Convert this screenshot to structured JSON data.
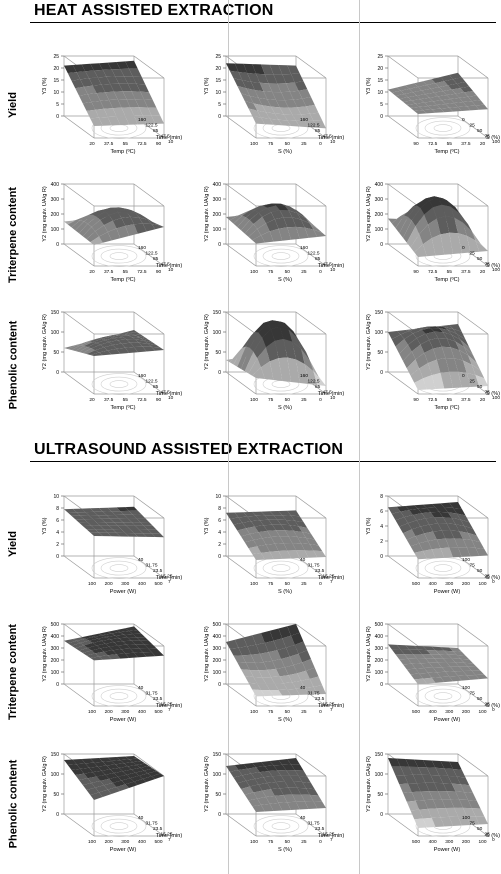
{
  "sections": [
    {
      "title": "HEAT ASSISTED EXTRACTION",
      "rows": [
        {
          "label": "Yield"
        },
        {
          "label": "Triterpene content"
        },
        {
          "label": "Phenolic content"
        }
      ]
    },
    {
      "title": "ULTRASOUND ASSISTED EXTRACTION",
      "rows": [
        {
          "label": "Yield"
        },
        {
          "label": "Triterpene content"
        },
        {
          "label": "Phenolic content"
        }
      ]
    }
  ],
  "colors": {
    "surface_dark": "#111111",
    "surface_light": "#d0d0d0",
    "box_line": "#9a9a9a",
    "text": "#000000"
  },
  "chart_data": [
    {
      "type": "surface",
      "section": 0,
      "row": 0,
      "col": 0,
      "zlabel": "Y3 (%)",
      "zticks": [
        "0",
        "5",
        "10",
        "15",
        "20",
        "25"
      ],
      "xlabel": "Temp (ºC)",
      "xticks": [
        "20",
        "37.5",
        "55",
        "72.5",
        "90"
      ],
      "ylabel": "Time (min)",
      "yticks": [
        "10",
        "47.5",
        "85",
        "122.5",
        "160"
      ],
      "corners": [
        21,
        23,
        6,
        5
      ],
      "bulge": 1
    },
    {
      "type": "surface",
      "section": 0,
      "row": 0,
      "col": 1,
      "zlabel": "Y3 (%)",
      "zticks": [
        "0",
        "5",
        "10",
        "15",
        "20",
        "25"
      ],
      "xlabel": "S (%)",
      "xticks": [
        "100",
        "75",
        "50",
        "25",
        "0"
      ],
      "ylabel": "Time (min)",
      "yticks": [
        "10",
        "47.5",
        "85",
        "122.5",
        "160"
      ],
      "corners": [
        22,
        21,
        4,
        6
      ],
      "bulge": -2
    },
    {
      "type": "surface",
      "section": 0,
      "row": 0,
      "col": 2,
      "zlabel": "Y3 (%)",
      "zticks": [
        "0",
        "5",
        "10",
        "15",
        "20",
        "25"
      ],
      "xlabel": "Temp (ºC)",
      "xticks": [
        "90",
        "72.5",
        "55",
        "37.5",
        "20"
      ],
      "ylabel": "S (%)",
      "yticks": [
        "100",
        "75",
        "50",
        "25",
        "0"
      ],
      "corners": [
        11,
        18,
        12,
        10
      ],
      "bulge": 0
    },
    {
      "type": "surface",
      "section": 0,
      "row": 1,
      "col": 0,
      "zlabel": "Y2 (mg equiv. UA/g R)",
      "zticks": [
        "0",
        "100",
        "200",
        "300",
        "400"
      ],
      "xlabel": "Temp (ºC)",
      "xticks": [
        "20",
        "37.5",
        "55",
        "72.5",
        "90"
      ],
      "ylabel": "Time (min)",
      "yticks": [
        "10",
        "47.5",
        "85",
        "122.5",
        "160"
      ],
      "corners": [
        150,
        200,
        260,
        140
      ],
      "bulge": 120
    },
    {
      "type": "surface",
      "section": 0,
      "row": 1,
      "col": 1,
      "zlabel": "Y2 (mg equiv. UA/g R)",
      "zticks": [
        "0",
        "100",
        "200",
        "300",
        "400"
      ],
      "xlabel": "S (%)",
      "xticks": [
        "100",
        "75",
        "50",
        "25",
        "0"
      ],
      "ylabel": "Time (min)",
      "yticks": [
        "10",
        "47.5",
        "85",
        "122.5",
        "160"
      ],
      "corners": [
        180,
        230,
        200,
        150
      ],
      "bulge": 140
    },
    {
      "type": "surface",
      "section": 0,
      "row": 1,
      "col": 2,
      "zlabel": "Y2 (mg equiv. UA/g R)",
      "zticks": [
        "0",
        "100",
        "200",
        "300",
        "400"
      ],
      "xlabel": "Temp (ºC)",
      "xticks": [
        "90",
        "72.5",
        "55",
        "37.5",
        "20"
      ],
      "ylabel": "S (%)",
      "yticks": [
        "100",
        "75",
        "50",
        "25",
        "0"
      ],
      "corners": [
        170,
        150,
        100,
        60
      ],
      "bulge": 260
    },
    {
      "type": "surface",
      "section": 0,
      "row": 2,
      "col": 0,
      "zlabel": "Y2 (mg equiv. GA/g R)",
      "zticks": [
        "0",
        "50",
        "100",
        "150"
      ],
      "xlabel": "Temp (ºC)",
      "xticks": [
        "20",
        "37.5",
        "55",
        "72.5",
        "90"
      ],
      "ylabel": "Time (min)",
      "yticks": [
        "10",
        "47.5",
        "85",
        "122.5",
        "160"
      ],
      "corners": [
        60,
        105,
        110,
        95
      ],
      "bulge": 20
    },
    {
      "type": "surface",
      "section": 0,
      "row": 2,
      "col": 1,
      "zlabel": "Y2 (mg equiv. GA/g R)",
      "zticks": [
        "0",
        "50",
        "100",
        "150"
      ],
      "xlabel": "S (%)",
      "xticks": [
        "100",
        "75",
        "50",
        "25",
        "0"
      ],
      "ylabel": "Time (min)",
      "yticks": [
        "10",
        "47.5",
        "85",
        "122.5",
        "160"
      ],
      "corners": [
        30,
        60,
        20,
        40
      ],
      "bulge": 120
    },
    {
      "type": "surface",
      "section": 0,
      "row": 2,
      "col": 2,
      "zlabel": "Y2 (mg equiv. GA/g R)",
      "zticks": [
        "0",
        "50",
        "100",
        "150"
      ],
      "xlabel": "Temp (ºC)",
      "xticks": [
        "90",
        "72.5",
        "55",
        "37.5",
        "20"
      ],
      "ylabel": "S (%)",
      "yticks": [
        "100",
        "75",
        "50",
        "25",
        "0"
      ],
      "corners": [
        100,
        120,
        20,
        10
      ],
      "bulge": 50
    },
    {
      "type": "surface",
      "section": 1,
      "row": 0,
      "col": 0,
      "zlabel": "Y3 (%)",
      "zticks": [
        "0",
        "2",
        "4",
        "6",
        "8",
        "10"
      ],
      "xlabel": "Power (W)",
      "xticks": [
        "100",
        "200",
        "300",
        "400",
        "500"
      ],
      "ylabel": "Time (min)",
      "yticks": [
        "7",
        "15.25",
        "23.5",
        "31.75",
        "40"
      ],
      "corners": [
        7.8,
        8.2,
        6.8,
        7.0
      ],
      "bulge": 0
    },
    {
      "type": "surface",
      "section": 1,
      "row": 0,
      "col": 1,
      "zlabel": "Y3 (%)",
      "zticks": [
        "0",
        "2",
        "4",
        "6",
        "8",
        "10"
      ],
      "xlabel": "S (%)",
      "xticks": [
        "100",
        "75",
        "50",
        "25",
        "0"
      ],
      "ylabel": "Time (min)",
      "yticks": [
        "7",
        "15.25",
        "23.5",
        "31.75",
        "40"
      ],
      "corners": [
        7.2,
        7.6,
        3.5,
        3.0
      ],
      "bulge": 0.8
    },
    {
      "type": "surface",
      "section": 1,
      "row": 0,
      "col": 2,
      "zlabel": "Y3 (%)",
      "zticks": [
        "0",
        "2",
        "4",
        "6",
        "8"
      ],
      "xlabel": "Power (W)",
      "xticks": [
        "500",
        "400",
        "300",
        "200",
        "100"
      ],
      "ylabel": "S (%)",
      "yticks": [
        "0",
        "25",
        "50",
        "75",
        "100"
      ],
      "corners": [
        6.5,
        7.2,
        3.0,
        2.5
      ],
      "bulge": 1.0
    },
    {
      "type": "surface",
      "section": 1,
      "row": 1,
      "col": 0,
      "zlabel": "Y2 (mg equiv. UA/g R)",
      "zticks": [
        "0",
        "100",
        "200",
        "300",
        "400",
        "500"
      ],
      "xlabel": "Power (W)",
      "xticks": [
        "100",
        "200",
        "300",
        "400",
        "500"
      ],
      "ylabel": "Time (min)",
      "yticks": [
        "7",
        "15.25",
        "23.5",
        "31.75",
        "40"
      ],
      "corners": [
        360,
        480,
        420,
        380
      ],
      "bulge": 30
    },
    {
      "type": "surface",
      "section": 1,
      "row": 1,
      "col": 1,
      "zlabel": "Y2 (mg equiv. UA/g R)",
      "zticks": [
        "0",
        "100",
        "200",
        "300",
        "400",
        "500"
      ],
      "xlabel": "S (%)",
      "xticks": [
        "100",
        "75",
        "50",
        "25",
        "0"
      ],
      "ylabel": "Time (min)",
      "yticks": [
        "7",
        "15.25",
        "23.5",
        "31.75",
        "40"
      ],
      "corners": [
        350,
        500,
        100,
        80
      ],
      "bulge": -40
    },
    {
      "type": "surface",
      "section": 1,
      "row": 1,
      "col": 2,
      "zlabel": "Y2 (mg equiv. UA/g R)",
      "zticks": [
        "0",
        "100",
        "200",
        "300",
        "400",
        "500"
      ],
      "xlabel": "Power (W)",
      "xticks": [
        "500",
        "400",
        "300",
        "200",
        "100"
      ],
      "ylabel": "S (%)",
      "yticks": [
        "0",
        "25",
        "50",
        "75",
        "100"
      ],
      "corners": [
        330,
        300,
        230,
        180
      ],
      "bulge": 10
    },
    {
      "type": "surface",
      "section": 1,
      "row": 2,
      "col": 0,
      "zlabel": "Y2 (mg equiv. GA/g R)",
      "zticks": [
        "0",
        "50",
        "100",
        "150"
      ],
      "xlabel": "Power (W)",
      "xticks": [
        "100",
        "200",
        "300",
        "400",
        "500"
      ],
      "ylabel": "Time (min)",
      "yticks": [
        "7",
        "15.25",
        "23.5",
        "31.75",
        "40"
      ],
      "corners": [
        135,
        145,
        150,
        90
      ],
      "bulge": 0
    },
    {
      "type": "surface",
      "section": 1,
      "row": 2,
      "col": 1,
      "zlabel": "Y2 (mg equiv. GA/g R)",
      "zticks": [
        "0",
        "50",
        "100",
        "150"
      ],
      "xlabel": "S (%)",
      "xticks": [
        "100",
        "75",
        "50",
        "25",
        "0"
      ],
      "ylabel": "Time (min)",
      "yticks": [
        "7",
        "15.25",
        "23.5",
        "31.75",
        "40"
      ],
      "corners": [
        120,
        140,
        70,
        60
      ],
      "bulge": 10
    },
    {
      "type": "surface",
      "section": 1,
      "row": 2,
      "col": 2,
      "zlabel": "Y2 (mg equiv. GA/g R)",
      "zticks": [
        "0",
        "50",
        "100",
        "150"
      ],
      "xlabel": "Power (W)",
      "xticks": [
        "500",
        "400",
        "300",
        "200",
        "100"
      ],
      "ylabel": "S (%)",
      "yticks": [
        "0",
        "25",
        "50",
        "75",
        "100"
      ],
      "corners": [
        140,
        130,
        30,
        20
      ],
      "bulge": 5
    }
  ]
}
